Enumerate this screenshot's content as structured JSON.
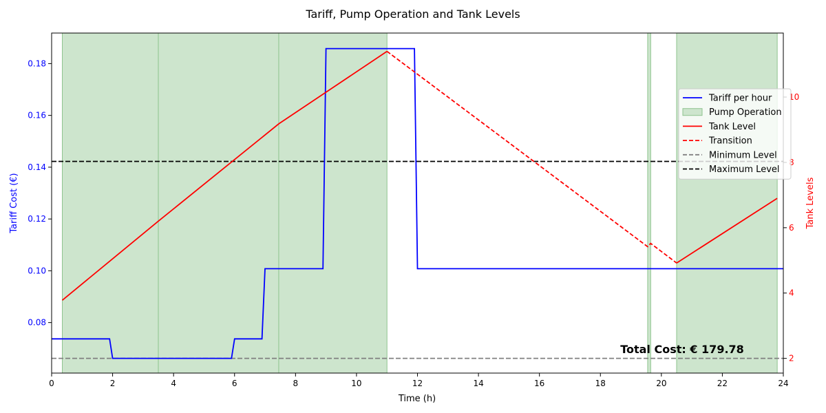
{
  "chart_data": {
    "type": "line",
    "title": "Tariff, Pump Operation and Tank Levels",
    "xlabel": "Time (h)",
    "ylabel_left": "Tariff Cost (€)",
    "ylabel_right": "Tank Levels",
    "xlim": [
      0,
      24
    ],
    "ylim_left": [
      0.0605,
      0.1918
    ],
    "ylim_right": [
      1.55,
      11.96
    ],
    "x_ticks": [
      0,
      2,
      4,
      6,
      8,
      10,
      12,
      14,
      16,
      18,
      20,
      22,
      24
    ],
    "y_ticks_left": [
      0.08,
      0.1,
      0.12,
      0.14,
      0.16,
      0.18
    ],
    "y_ticks_right": [
      2,
      4,
      6,
      8,
      10
    ],
    "legend_position": "right",
    "total_cost_label": "Total Cost: € 179.78",
    "colors": {
      "tariff": "#0000ff",
      "tank": "#ff0000",
      "pump_fill": "#cde5cd",
      "pump_edge": "#8fc48f",
      "minimum": "#808080",
      "maximum": "#000000",
      "left_tick": "#0000ff",
      "right_tick": "#ff0000"
    },
    "series": [
      {
        "name": "Tariff per hour",
        "axis": "left",
        "style": "solid",
        "x": [
          0,
          1.9,
          2.0,
          5.9,
          6.0,
          6.9,
          7.0,
          8.9,
          9.0,
          11.9,
          12.0,
          24
        ],
        "y": [
          0.0737,
          0.0737,
          0.0662,
          0.0662,
          0.0737,
          0.0737,
          0.1008,
          0.1008,
          0.1858,
          0.1858,
          0.1008,
          0.1008
        ]
      },
      {
        "name": "Tank Level",
        "axis": "right",
        "style": "solid",
        "x": [
          0.35,
          3.5,
          7.45,
          11.0
        ],
        "y": [
          3.78,
          6.2,
          9.18,
          11.4
        ]
      },
      {
        "name": "Transition",
        "axis": "right",
        "style": "dashed",
        "x": [
          11.0,
          19.55,
          19.65,
          20.5
        ],
        "y": [
          11.4,
          5.42,
          5.52,
          4.92
        ]
      },
      {
        "name": "Tank Level (after 20.5 h)",
        "axis": "right",
        "style": "solid",
        "legend": false,
        "x": [
          20.5,
          23.8
        ],
        "y": [
          4.92,
          6.9
        ]
      },
      {
        "name": "Minimum Level",
        "axis": "right",
        "style": "dashed",
        "value": 2
      },
      {
        "name": "Maximum Level",
        "axis": "right",
        "style": "dashed",
        "value": 8.03
      }
    ],
    "pump_operation": [
      {
        "start": 0.35,
        "end": 3.5
      },
      {
        "start": 3.5,
        "end": 7.45
      },
      {
        "start": 7.45,
        "end": 11.0
      },
      {
        "start": 19.55,
        "end": 19.65
      },
      {
        "start": 20.5,
        "end": 23.8
      }
    ],
    "legend": [
      {
        "label": "Tariff per hour",
        "kind": "line",
        "color": "#0000ff",
        "dash": false
      },
      {
        "label": "Pump Operation",
        "kind": "patch",
        "color": "#cde5cd",
        "dash": false
      },
      {
        "label": "Tank Level",
        "kind": "line",
        "color": "#ff0000",
        "dash": false
      },
      {
        "label": "Transition",
        "kind": "line",
        "color": "#ff0000",
        "dash": true
      },
      {
        "label": "Minimum Level",
        "kind": "line",
        "color": "#808080",
        "dash": true
      },
      {
        "label": "Maximum Level",
        "kind": "line",
        "color": "#000000",
        "dash": true
      }
    ]
  }
}
